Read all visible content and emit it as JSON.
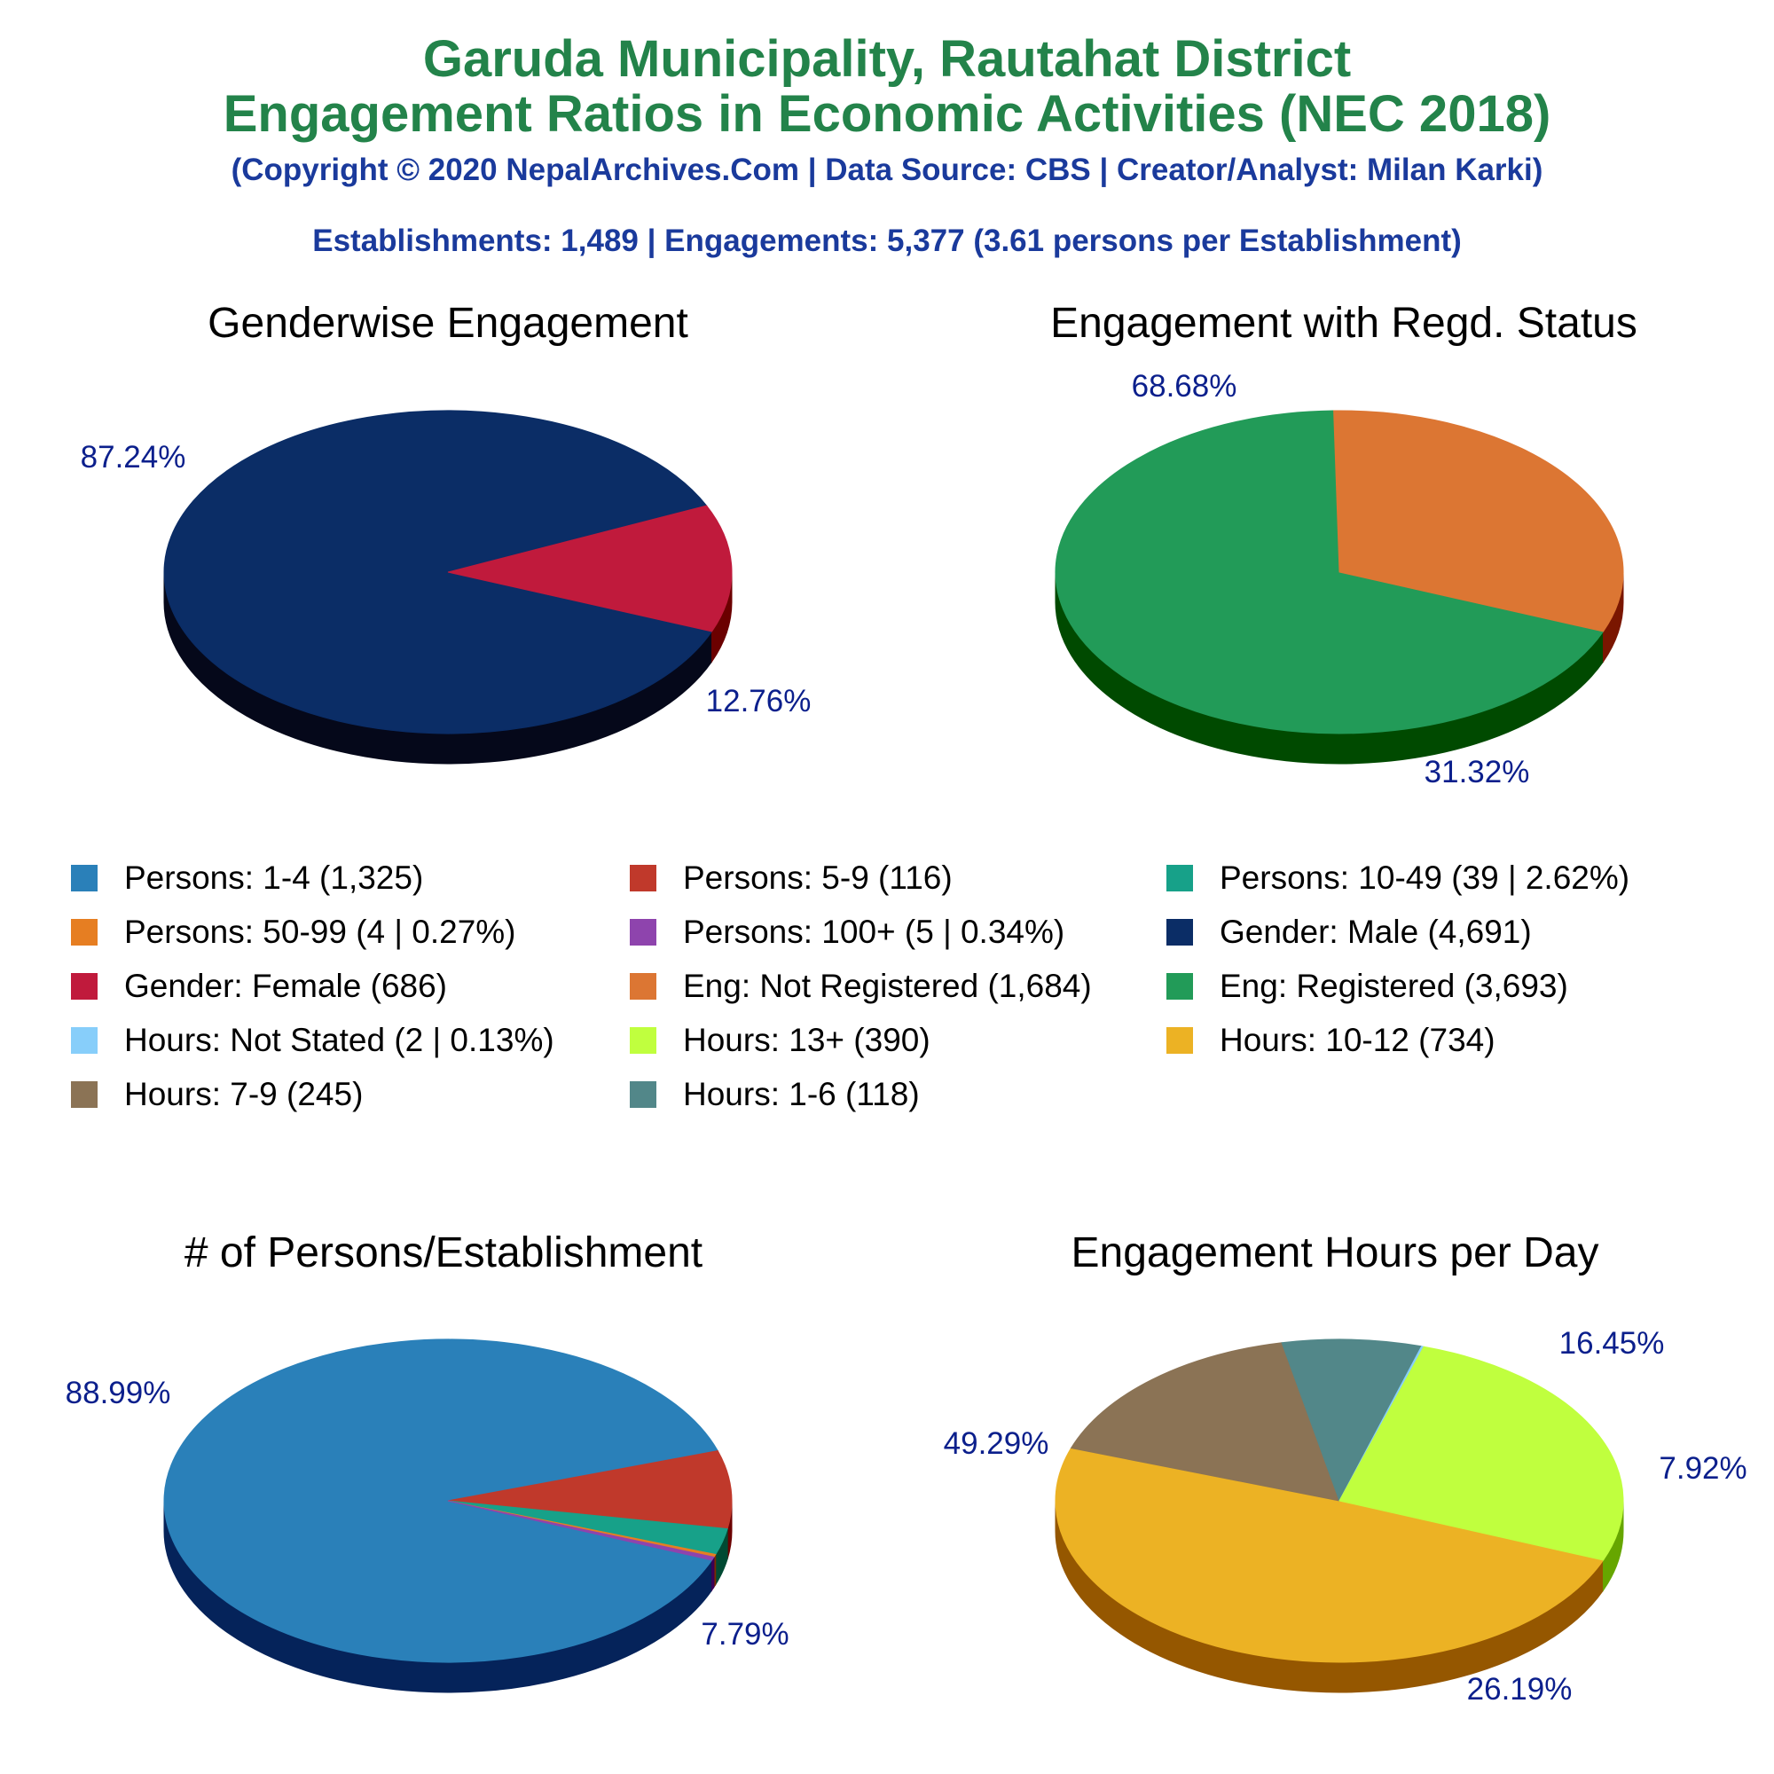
{
  "header": {
    "title_line1": "Garuda Municipality, Rautahat District",
    "title_line2": "Engagement Ratios in Economic Activities (NEC 2018)",
    "copyright": "(Copyright © 2020 NepalArchives.Com | Data Source: CBS | Creator/Analyst: Milan Karki)",
    "summary": "Establishments: 1,489 | Engagements: 5,377 (3.61 persons per Establishment)"
  },
  "chart_data": [
    {
      "type": "pie",
      "title": "Genderwise Engagement",
      "series": [
        {
          "name": "Gender: Male",
          "value": 4691,
          "color": "#0b2d66",
          "side": "#05081a",
          "label": "87.24%"
        },
        {
          "name": "Gender: Female",
          "value": 686,
          "color": "#c01a3c",
          "side": "#6b0000",
          "label": "12.76%"
        }
      ]
    },
    {
      "type": "pie",
      "title": "Engagement with Regd. Status",
      "series": [
        {
          "name": "Eng: Registered",
          "value": 3693,
          "color": "#229b58",
          "side": "#004a00",
          "label": "68.68%"
        },
        {
          "name": "Eng: Not Registered",
          "value": 1684,
          "color": "#dc7633",
          "side": "#7a1600",
          "label": "31.32%"
        }
      ]
    },
    {
      "type": "pie",
      "title": "# of Persons/Establishment",
      "series": [
        {
          "name": "Persons: 1-4",
          "value": 1325,
          "color": "#2a80b9",
          "side": "#05235a",
          "label": "88.99%"
        },
        {
          "name": "Persons: 5-9",
          "value": 116,
          "color": "#c0392b",
          "side": "#6b0000",
          "label": "7.79%"
        },
        {
          "name": "Persons: 10-49",
          "value": 39,
          "color": "#17a189",
          "side": "#004a33",
          "label": ""
        },
        {
          "name": "Persons: 50-99",
          "value": 4,
          "color": "#e67e22",
          "side": "#7a2a00",
          "label": ""
        },
        {
          "name": "Persons: 100+",
          "value": 5,
          "color": "#8e44ad",
          "side": "#3a0057",
          "label": ""
        }
      ]
    },
    {
      "type": "pie",
      "title": "Engagement Hours per Day",
      "series": [
        {
          "name": "Hours: 10-12",
          "value": 734,
          "color": "#ecb224",
          "side": "#955700",
          "label": "49.29%"
        },
        {
          "name": "Hours: 7-9",
          "value": 245,
          "color": "#8b7355",
          "side": "#3a2a10",
          "label": "16.45%"
        },
        {
          "name": "Hours: 1-6",
          "value": 118,
          "color": "#528789",
          "side": "#16383a",
          "label": "7.92%"
        },
        {
          "name": "Hours: Not Stated",
          "value": 2,
          "color": "#87cefa",
          "side": "#2a6a9a",
          "label": ""
        },
        {
          "name": "Hours: 13+",
          "value": 390,
          "color": "#c0ff3e",
          "side": "#66a600",
          "label": "26.19%"
        }
      ]
    }
  ],
  "legend": [
    {
      "label": "Persons: 1-4 (1,325)",
      "color": "#2a80b9"
    },
    {
      "label": "Persons: 5-9 (116)",
      "color": "#c0392b"
    },
    {
      "label": "Persons: 10-49 (39 | 2.62%)",
      "color": "#17a189"
    },
    {
      "label": "Persons: 50-99 (4 | 0.27%)",
      "color": "#e67e22"
    },
    {
      "label": "Persons: 100+ (5 | 0.34%)",
      "color": "#8e44ad"
    },
    {
      "label": "Gender: Male (4,691)",
      "color": "#0b2d66"
    },
    {
      "label": "Gender: Female (686)",
      "color": "#c01a3c"
    },
    {
      "label": "Eng: Not Registered (1,684)",
      "color": "#dc7633"
    },
    {
      "label": "Eng: Registered (3,693)",
      "color": "#229b58"
    },
    {
      "label": "Hours: Not Stated (2 | 0.13%)",
      "color": "#87cefa"
    },
    {
      "label": "Hours: 13+ (390)",
      "color": "#c0ff3e"
    },
    {
      "label": "Hours: 10-12 (734)",
      "color": "#ecb224"
    },
    {
      "label": "Hours: 7-9 (245)",
      "color": "#8b7355"
    },
    {
      "label": "Hours: 1-6 (118)",
      "color": "#528789"
    }
  ]
}
